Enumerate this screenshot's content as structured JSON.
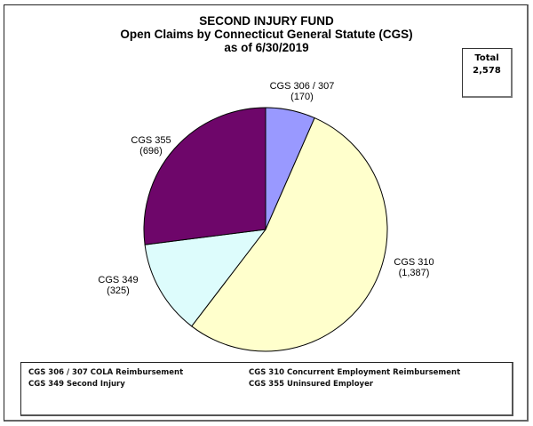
{
  "chart_data": {
    "type": "pie",
    "title": "SECOND INJURY FUND",
    "subtitle": "Open Claims by Connecticut General Statute (CGS)",
    "date_line": "as of 6/30/2019",
    "total_label": "Total",
    "total_value": "2,578",
    "slices": [
      {
        "label": "CGS 306 / 307",
        "value": 170,
        "value_text": "(170)",
        "color": "#9999ff"
      },
      {
        "label": "CGS 310",
        "value": 1387,
        "value_text": "(1,387)",
        "color": "#ffffcc"
      },
      {
        "label": "CGS 349",
        "value": 325,
        "value_text": "(325)",
        "color": "#ddfcfc"
      },
      {
        "label": "CGS 355",
        "value": 696,
        "value_text": "(696)",
        "color": "#6e066a"
      }
    ],
    "legend": [
      "CGS 306 / 307 COLA Reimbursement",
      "CGS 310 Concurrent  Employment Reimbursement",
      "CGS 349 Second Injury",
      "CGS 355 Uninsured  Employer"
    ]
  }
}
